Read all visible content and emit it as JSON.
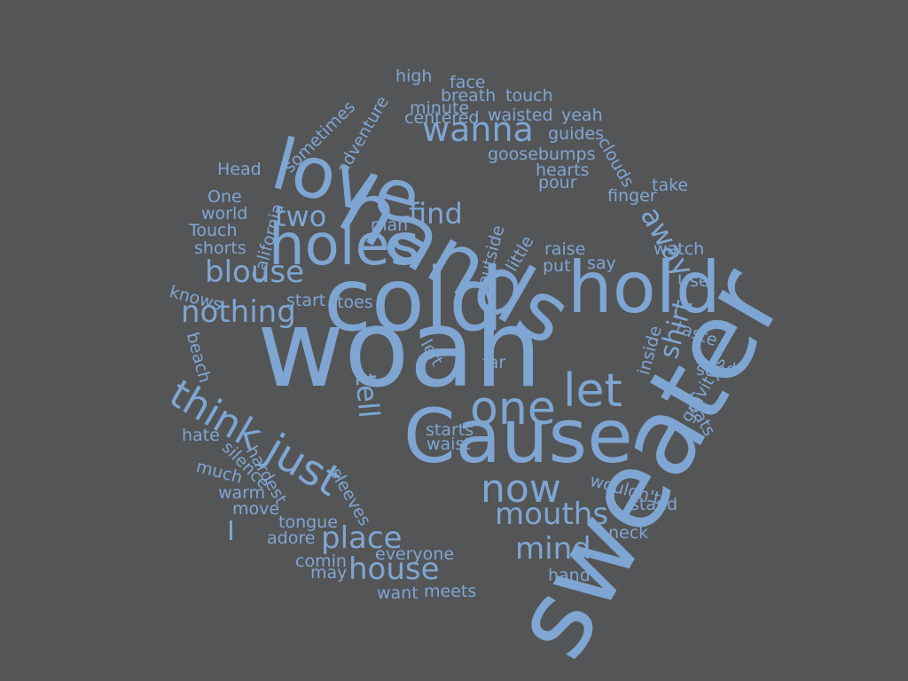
{
  "colors": {
    "background": "#545557",
    "word": "#7fa6d2"
  },
  "words": [
    {
      "text": "woah"
    },
    {
      "text": "sweater"
    },
    {
      "text": "cold"
    },
    {
      "text": "hands"
    },
    {
      "text": "Cause"
    },
    {
      "text": "love"
    },
    {
      "text": "hold"
    },
    {
      "text": "holes"
    },
    {
      "text": "one"
    },
    {
      "text": "let"
    },
    {
      "text": "now"
    },
    {
      "text": "just"
    },
    {
      "text": "think"
    },
    {
      "text": "wanna"
    },
    {
      "text": "mouths"
    },
    {
      "text": "place"
    },
    {
      "text": "house"
    },
    {
      "text": "mind"
    },
    {
      "text": "blouse"
    },
    {
      "text": "nothing"
    },
    {
      "text": "two"
    },
    {
      "text": "find"
    },
    {
      "text": "away"
    },
    {
      "text": "tell"
    },
    {
      "text": "shirt"
    },
    {
      "text": "I"
    },
    {
      "text": "high"
    },
    {
      "text": "face"
    },
    {
      "text": "breath"
    },
    {
      "text": "touch"
    },
    {
      "text": "minute"
    },
    {
      "text": "centered"
    },
    {
      "text": "waisted"
    },
    {
      "text": "yeah"
    },
    {
      "text": "guides"
    },
    {
      "text": "goosebumps"
    },
    {
      "text": "hearts"
    },
    {
      "text": "pour"
    },
    {
      "text": "clouds"
    },
    {
      "text": "take"
    },
    {
      "text": "finger"
    },
    {
      "text": "sometimes"
    },
    {
      "text": "adventure"
    },
    {
      "text": "Head"
    },
    {
      "text": "One"
    },
    {
      "text": "world"
    },
    {
      "text": "Touch"
    },
    {
      "text": "shorts"
    },
    {
      "text": "California"
    },
    {
      "text": "man"
    },
    {
      "text": "outside"
    },
    {
      "text": "little"
    },
    {
      "text": "raise"
    },
    {
      "text": "put"
    },
    {
      "text": "say"
    },
    {
      "text": "watch"
    },
    {
      "text": "knows"
    },
    {
      "text": "start"
    },
    {
      "text": "toes"
    },
    {
      "text": "Use"
    },
    {
      "text": "taste"
    },
    {
      "text": "inside"
    },
    {
      "text": "left"
    },
    {
      "text": "far"
    },
    {
      "text": "beach"
    },
    {
      "text": "sand"
    },
    {
      "text": "gravity's"
    },
    {
      "text": "beats"
    },
    {
      "text": "hate"
    },
    {
      "text": "starts"
    },
    {
      "text": "waist"
    },
    {
      "text": "silence"
    },
    {
      "text": "hardest"
    },
    {
      "text": "much"
    },
    {
      "text": "warm"
    },
    {
      "text": "move"
    },
    {
      "text": "sleeves"
    },
    {
      "text": "wouldn't"
    },
    {
      "text": "stand"
    },
    {
      "text": "tongue"
    },
    {
      "text": "adore"
    },
    {
      "text": "neck"
    },
    {
      "text": "everyone"
    },
    {
      "text": "comin"
    },
    {
      "text": "may"
    },
    {
      "text": "hand"
    },
    {
      "text": "want"
    },
    {
      "text": "meets"
    }
  ]
}
